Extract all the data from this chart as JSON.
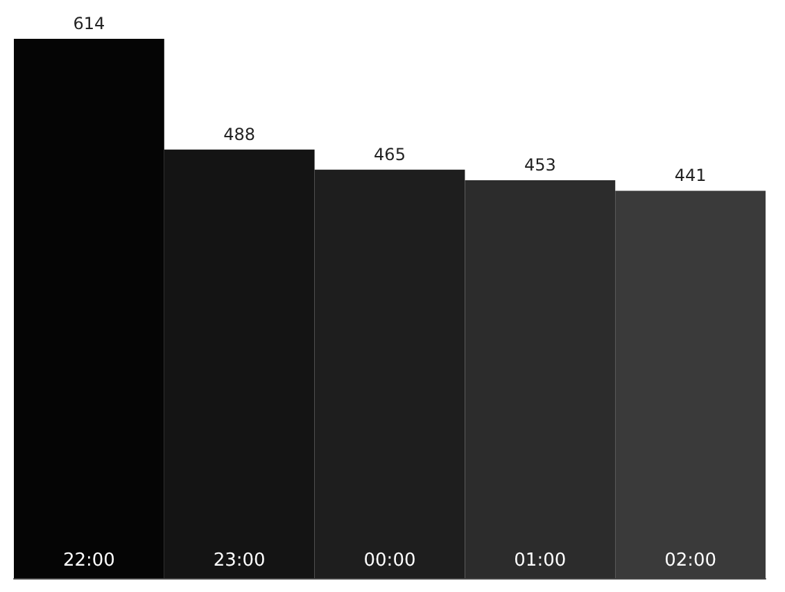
{
  "chart_data": {
    "type": "bar",
    "categories": [
      "22:00",
      "23:00",
      "00:00",
      "01:00",
      "02:00"
    ],
    "values": [
      614,
      488,
      465,
      453,
      441
    ],
    "colors": [
      "#050505",
      "#141414",
      "#1e1e1e",
      "#2c2c2c",
      "#3a3a3a"
    ],
    "data_labels": true
  }
}
